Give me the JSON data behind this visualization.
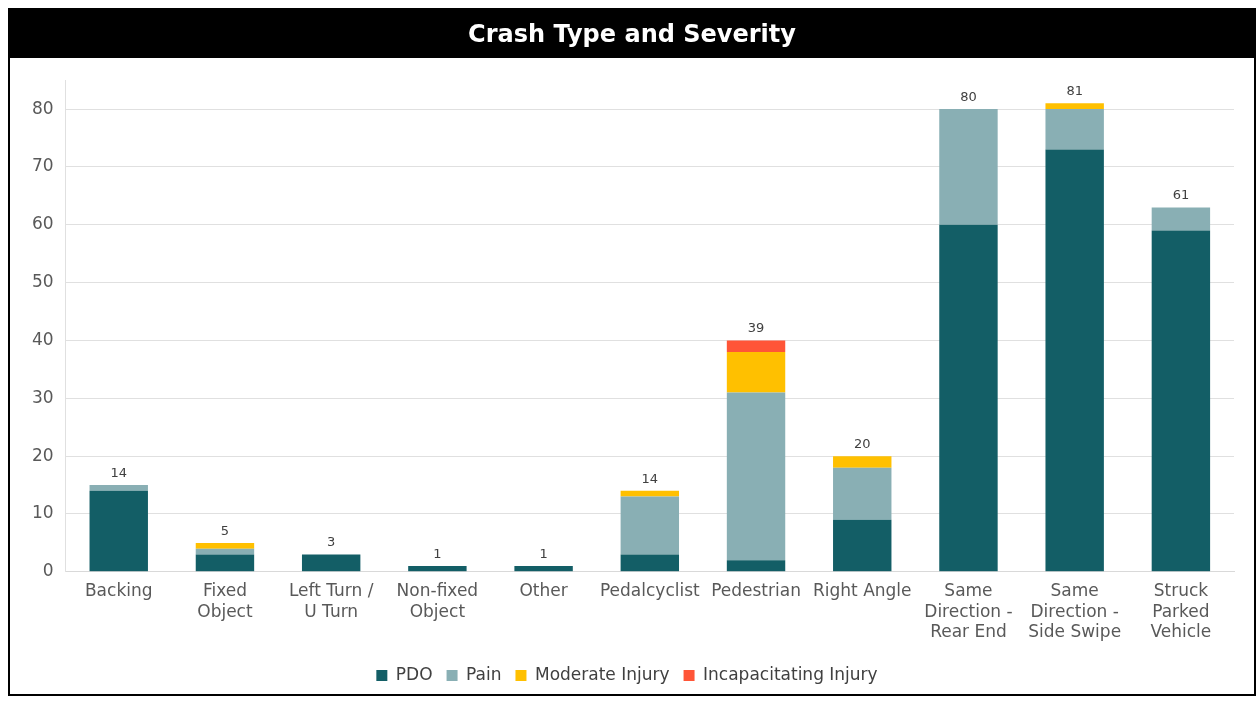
{
  "chart_data": {
    "type": "bar",
    "title": "Crash Type and Severity",
    "stacked": true,
    "categories": [
      "Backing",
      "Fixed Object",
      "Left Turn / U Turn",
      "Non-fixed Object",
      "Other",
      "Pedalcyclist",
      "Pedestrian",
      "Right Angle",
      "Same Direction - Rear End",
      "Same Direction - Side Swipe",
      "Struck Parked Vehicle"
    ],
    "series": [
      {
        "name": "PDO",
        "color": "#135e66",
        "values": [
          14,
          3,
          3,
          1,
          1,
          3,
          2,
          9,
          60,
          73,
          59
        ]
      },
      {
        "name": "Pain",
        "color": "#89afb4",
        "values": [
          1,
          1,
          null,
          null,
          null,
          10,
          29,
          9,
          20,
          7,
          4
        ]
      },
      {
        "name": "Moderate Injury",
        "color": "#ffc000",
        "values": [
          null,
          1,
          null,
          null,
          null,
          1,
          7,
          2,
          null,
          1,
          null
        ]
      },
      {
        "name": "Incapacitating Injury",
        "color": "#ff5537",
        "values": [
          null,
          null,
          null,
          null,
          null,
          null,
          2,
          null,
          null,
          null,
          null
        ]
      }
    ],
    "totals": [
      "14",
      "5",
      "3",
      "1",
      "1",
      "14",
      "39",
      "20",
      "80",
      "81",
      "61"
    ],
    "ylim": [
      0,
      85
    ],
    "yticks": [
      0,
      10,
      20,
      30,
      40,
      50,
      60,
      70,
      80
    ],
    "grid": "y",
    "legend": "bottom"
  }
}
